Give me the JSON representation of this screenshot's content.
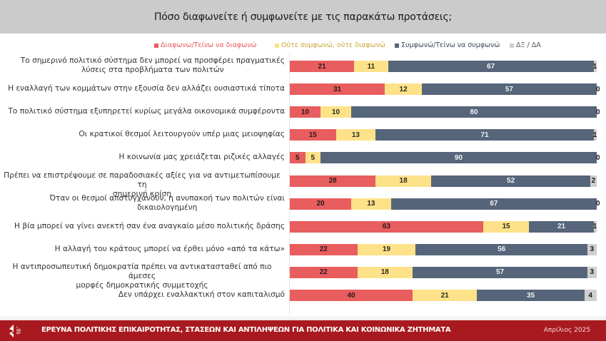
{
  "header": {
    "title": "Πόσο διαφωνείτε ή συμφωνείτε με τις παρακάτω προτάσεις;"
  },
  "colors": {
    "disagree": "#e85d5e",
    "neutral": "#fde28a",
    "agree": "#56657a",
    "dk": "#cfcfcf",
    "footer": "#a81a1f",
    "header": "#cbcbcb"
  },
  "chart_data": {
    "type": "bar",
    "orientation": "horizontal",
    "stacked": true,
    "title": "Πόσο διαφωνείτε ή συμφωνείτε με τις παρακάτω προτάσεις;",
    "xlabel": "",
    "ylabel": "",
    "xlim": [
      0,
      100
    ],
    "grid": false,
    "legend_position": "top-right",
    "legend": [
      "Διαφωνω/Τείνω να διαφωνώ",
      "Ούτε συμφωνώ, ούτε διαφωνώ",
      "Συμφωνώ/Τείνω να συμφωνώ",
      "ΔΞ / ΔΑ"
    ],
    "categories": [
      [
        "Το σημερινό πολιτικό σύστημα δεν μπορεί να προσφέρει πραγματικές",
        "λύσεις στα προβλήματα των πολιτών"
      ],
      [
        "Η εναλλαγή των κομμάτων στην εξουσία δεν αλλάζει ουσιαστικά τίποτα"
      ],
      [
        "Το πολιτικό σύστημα εξυπηρετεί κυρίως  μεγάλα οικονομικά συμφέροντα"
      ],
      [
        "Οι κρατικοί θεσμοί λειτουργούν υπέρ μιας μειοψηφίας"
      ],
      [
        "Η κοινωνία μας χρειάζεται ριζικές αλλαγές"
      ],
      [
        "Πρέπει να επιστρέψουμε σε παραδοσιακές αξίες για να αντιμετωπίσουμε τη",
        "σημερινή κρίση"
      ],
      [
        "Όταν οι θεσμοί αποτυγχάνουν, η ανυπακοή των πολιτών είναι",
        "δικαιολογημένη"
      ],
      [
        "Η βία μπορεί να γίνει ανεκτή σαν ένα αναγκαίο μέσο πολιτικής δράσης"
      ],
      [
        "Η αλλαγή του κράτους μπορεί να έρθει μόνο «από τα κάτω»"
      ],
      [
        "Η αντιπροσωπευτική δημοκρατία πρέπει να αντικατασταθεί από πιο άμεσες",
        "μορφές δημοκρατικής συμμετοχής"
      ],
      [
        "Δεν υπάρχει εναλλακτική στον καπιταλισμό"
      ]
    ],
    "series": [
      {
        "name": "Διαφωνω/Τείνω να διαφωνώ",
        "key": "dis",
        "values": [
          21,
          31,
          10,
          15,
          5,
          28,
          20,
          63,
          22,
          22,
          40
        ]
      },
      {
        "name": "Ούτε συμφωνώ, ούτε διαφωνώ",
        "key": "neu",
        "values": [
          11,
          12,
          10,
          13,
          5,
          18,
          13,
          15,
          19,
          18,
          21
        ]
      },
      {
        "name": "Συμφωνώ/Τείνω να συμφωνώ",
        "key": "agr",
        "values": [
          67,
          57,
          80,
          71,
          90,
          52,
          67,
          21,
          56,
          57,
          35
        ]
      },
      {
        "name": "ΔΞ / ΔΑ",
        "key": "dk",
        "values": [
          1,
          0,
          0,
          1,
          0,
          2,
          0,
          1,
          3,
          3,
          4
        ]
      }
    ]
  },
  "footer": {
    "title": "ΕΡΕΥΝΑ ΠΟΛΙΤΙΚΗΣ ΕΠΙΚΑΙΡΟΤΗΤΑΣ, ΣΤΑΣΕΩΝ ΚΑΙ ΑΝΤΙΛΗΨΕΩΝ ΓΙΑ ΠΟΛΙΤΙΚΑ ΚΑΙ ΚΟΙΝΩΝΙΚΑ ΖΗΤΗΜΑΤΑ",
    "date": "Απρίλιος 2025",
    "logo_icon": "organization-logo-icon"
  }
}
